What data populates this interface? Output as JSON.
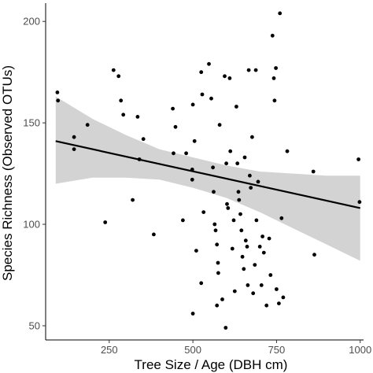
{
  "chart_data": {
    "type": "scatter",
    "title": "",
    "xlabel": "Tree Size / Age (DBH cm)",
    "ylabel": "Species Richness (Observed OTUs)",
    "xlim": [
      60,
      1010
    ],
    "ylim": [
      43,
      209
    ],
    "x_ticks": [
      250,
      500,
      750,
      1000
    ],
    "x_tick_labels": [
      "250",
      "500",
      "750",
      "1000"
    ],
    "y_ticks": [
      50,
      100,
      150,
      200
    ],
    "y_tick_labels": [
      "50",
      "100",
      "150",
      "200"
    ],
    "grid": false,
    "colors": {
      "points": "#000000",
      "line": "#000000",
      "ribbon": "#d3d3d3",
      "axis": "#000000"
    },
    "regression": {
      "method": "linear fit with confidence band",
      "x": [
        90,
        200,
        300,
        400,
        500,
        600,
        700,
        800,
        900,
        1000
      ],
      "fit": [
        141,
        137,
        133,
        130,
        126,
        122,
        119,
        115,
        111,
        108
      ],
      "lower": [
        120,
        123,
        123,
        122,
        118,
        113,
        106,
        98,
        90,
        82
      ],
      "upper": [
        163,
        152,
        144,
        137,
        133,
        129,
        126,
        125,
        124,
        124
      ]
    },
    "points": [
      {
        "x": 95,
        "y": 165
      },
      {
        "x": 97,
        "y": 161
      },
      {
        "x": 145,
        "y": 143
      },
      {
        "x": 145,
        "y": 137
      },
      {
        "x": 185,
        "y": 149
      },
      {
        "x": 238,
        "y": 101
      },
      {
        "x": 263,
        "y": 176
      },
      {
        "x": 278,
        "y": 173
      },
      {
        "x": 285,
        "y": 161
      },
      {
        "x": 292,
        "y": 154
      },
      {
        "x": 320,
        "y": 112
      },
      {
        "x": 335,
        "y": 153
      },
      {
        "x": 340,
        "y": 132
      },
      {
        "x": 352,
        "y": 142
      },
      {
        "x": 383,
        "y": 95
      },
      {
        "x": 440,
        "y": 157
      },
      {
        "x": 442,
        "y": 135
      },
      {
        "x": 448,
        "y": 148
      },
      {
        "x": 470,
        "y": 102
      },
      {
        "x": 480,
        "y": 135
      },
      {
        "x": 500,
        "y": 159
      },
      {
        "x": 498,
        "y": 127
      },
      {
        "x": 498,
        "y": 122
      },
      {
        "x": 505,
        "y": 141
      },
      {
        "x": 510,
        "y": 87
      },
      {
        "x": 525,
        "y": 175
      },
      {
        "x": 528,
        "y": 164
      },
      {
        "x": 525,
        "y": 71
      },
      {
        "x": 532,
        "y": 106
      },
      {
        "x": 500,
        "y": 56
      },
      {
        "x": 548,
        "y": 179
      },
      {
        "x": 555,
        "y": 162
      },
      {
        "x": 560,
        "y": 128
      },
      {
        "x": 562,
        "y": 116
      },
      {
        "x": 565,
        "y": 100
      },
      {
        "x": 568,
        "y": 97
      },
      {
        "x": 572,
        "y": 90
      },
      {
        "x": 575,
        "y": 81
      },
      {
        "x": 576,
        "y": 76
      },
      {
        "x": 572,
        "y": 60
      },
      {
        "x": 580,
        "y": 149
      },
      {
        "x": 588,
        "y": 63
      },
      {
        "x": 595,
        "y": 173
      },
      {
        "x": 600,
        "y": 130
      },
      {
        "x": 602,
        "y": 110
      },
      {
        "x": 605,
        "y": 108
      },
      {
        "x": 598,
        "y": 49
      },
      {
        "x": 610,
        "y": 172
      },
      {
        "x": 612,
        "y": 136
      },
      {
        "x": 618,
        "y": 88
      },
      {
        "x": 622,
        "y": 102
      },
      {
        "x": 625,
        "y": 67
      },
      {
        "x": 630,
        "y": 158
      },
      {
        "x": 633,
        "y": 130
      },
      {
        "x": 636,
        "y": 116
      },
      {
        "x": 638,
        "y": 112
      },
      {
        "x": 642,
        "y": 105
      },
      {
        "x": 645,
        "y": 97
      },
      {
        "x": 648,
        "y": 84
      },
      {
        "x": 652,
        "y": 78
      },
      {
        "x": 655,
        "y": 133
      },
      {
        "x": 658,
        "y": 92
      },
      {
        "x": 662,
        "y": 89
      },
      {
        "x": 664,
        "y": 70
      },
      {
        "x": 667,
        "y": 176
      },
      {
        "x": 670,
        "y": 124
      },
      {
        "x": 673,
        "y": 118
      },
      {
        "x": 677,
        "y": 143
      },
      {
        "x": 680,
        "y": 66
      },
      {
        "x": 685,
        "y": 80
      },
      {
        "x": 688,
        "y": 176
      },
      {
        "x": 690,
        "y": 102
      },
      {
        "x": 695,
        "y": 121
      },
      {
        "x": 700,
        "y": 89
      },
      {
        "x": 705,
        "y": 70
      },
      {
        "x": 708,
        "y": 94
      },
      {
        "x": 712,
        "y": 86
      },
      {
        "x": 720,
        "y": 60
      },
      {
        "x": 728,
        "y": 93
      },
      {
        "x": 732,
        "y": 75
      },
      {
        "x": 738,
        "y": 193
      },
      {
        "x": 742,
        "y": 172
      },
      {
        "x": 744,
        "y": 161
      },
      {
        "x": 748,
        "y": 177
      },
      {
        "x": 750,
        "y": 68
      },
      {
        "x": 757,
        "y": 61
      },
      {
        "x": 760,
        "y": 204
      },
      {
        "x": 765,
        "y": 103
      },
      {
        "x": 770,
        "y": 64
      },
      {
        "x": 782,
        "y": 136
      },
      {
        "x": 860,
        "y": 126
      },
      {
        "x": 863,
        "y": 85
      },
      {
        "x": 995,
        "y": 132
      },
      {
        "x": 998,
        "y": 111
      }
    ]
  }
}
